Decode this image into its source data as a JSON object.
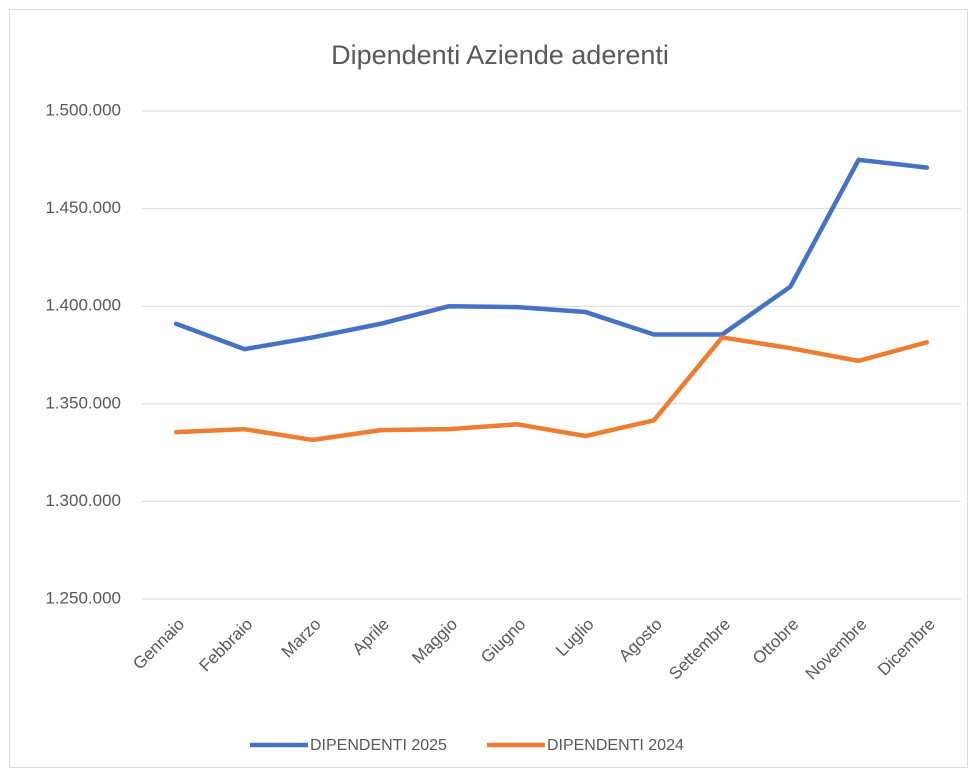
{
  "chart_data": {
    "type": "line",
    "title": "Dipendenti Aziende aderenti",
    "categories": [
      "Gennaio",
      "Febbraio",
      "Marzo",
      "Aprile",
      "Maggio",
      "Giugno",
      "Luglio",
      "Agosto",
      "Settembre",
      "Ottobre",
      "Novembre",
      "Dicembre"
    ],
    "series": [
      {
        "name": "DIPENDENTI 2025",
        "color": "#4472c4",
        "values": [
          1391000,
          1378000,
          1384000,
          1391000,
          1400000,
          1399500,
          1397000,
          1385500,
          1385500,
          1410000,
          1475000,
          1471000
        ]
      },
      {
        "name": "DIPENDENTI 2024",
        "color": "#ed7d31",
        "values": [
          1335500,
          1337000,
          1331500,
          1336500,
          1337000,
          1339500,
          1333500,
          1341500,
          1384000,
          1378500,
          1372000,
          1381500
        ]
      }
    ],
    "ylim": [
      1250000,
      1500000
    ],
    "yticks": [
      {
        "value": 1250000,
        "label": "1.250.000"
      },
      {
        "value": 1300000,
        "label": "1.300.000"
      },
      {
        "value": 1350000,
        "label": "1.350.000"
      },
      {
        "value": 1400000,
        "label": "1.400.000"
      },
      {
        "value": 1450000,
        "label": "1.450.000"
      },
      {
        "value": 1500000,
        "label": "1.500.000"
      }
    ],
    "grid": true,
    "legend": "bottom"
  }
}
